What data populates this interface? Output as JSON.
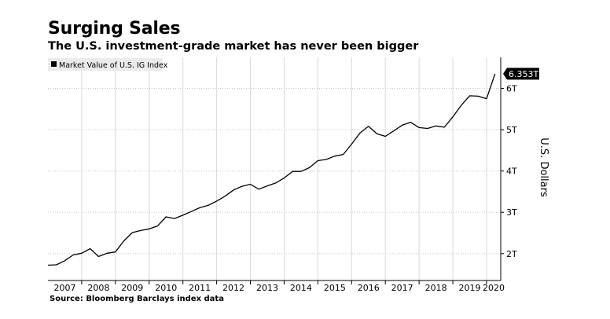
{
  "header": {
    "title": "Surging Sales",
    "subtitle": "The U.S. investment-grade market has never been bigger"
  },
  "footer": {
    "source": "Source: Bloomberg Barclays index data"
  },
  "colors": {
    "line": "#000000",
    "grid": "#d9d9d9",
    "background": "#ffffff"
  },
  "chart_data": {
    "type": "line",
    "title": "Surging Sales",
    "subtitle": "The U.S. investment-grade market has never been bigger",
    "ylabel": "U.S. Dollars",
    "xlabel": "",
    "legend": {
      "position": "top-left",
      "entries": [
        "Market Value of U.S. IG Index"
      ]
    },
    "last_value_label": "6.353T",
    "x_tick_labels": [
      "2007",
      "2008",
      "2009",
      "2010",
      "2011",
      "2012",
      "2013",
      "2014",
      "2015",
      "2016",
      "2017",
      "2018",
      "2019",
      "2020"
    ],
    "y_tick_labels": [
      "2T",
      "3T",
      "4T",
      "5T",
      "6T"
    ],
    "y_ticks": [
      2,
      3,
      4,
      5,
      6
    ],
    "xlim": [
      2007.0,
      2020.42
    ],
    "ylim": [
      1.35,
      6.75
    ],
    "grid": true,
    "series": [
      {
        "name": "Market Value of U.S. IG Index",
        "x": [
          2007.0,
          2007.25,
          2007.5,
          2007.75,
          2008.0,
          2008.25,
          2008.5,
          2008.75,
          2009.0,
          2009.25,
          2009.5,
          2009.75,
          2010.0,
          2010.25,
          2010.5,
          2010.75,
          2011.0,
          2011.25,
          2011.5,
          2011.75,
          2012.0,
          2012.25,
          2012.5,
          2012.75,
          2013.0,
          2013.25,
          2013.5,
          2013.75,
          2014.0,
          2014.25,
          2014.5,
          2014.75,
          2015.0,
          2015.25,
          2015.5,
          2015.75,
          2016.0,
          2016.25,
          2016.5,
          2016.75,
          2017.0,
          2017.25,
          2017.5,
          2017.75,
          2018.0,
          2018.25,
          2018.5,
          2018.75,
          2019.0,
          2019.25,
          2019.5,
          2019.75,
          2020.0,
          2020.25
        ],
        "values": [
          1.72,
          1.73,
          1.83,
          1.97,
          2.01,
          2.12,
          1.93,
          2.01,
          2.04,
          2.31,
          2.51,
          2.56,
          2.6,
          2.67,
          2.89,
          2.85,
          2.93,
          3.02,
          3.11,
          3.17,
          3.27,
          3.39,
          3.54,
          3.63,
          3.68,
          3.56,
          3.64,
          3.71,
          3.83,
          3.99,
          3.99,
          4.08,
          4.25,
          4.28,
          4.36,
          4.4,
          4.65,
          4.92,
          5.08,
          4.9,
          4.84,
          4.97,
          5.11,
          5.18,
          5.05,
          5.03,
          5.09,
          5.06,
          5.31,
          5.59,
          5.82,
          5.81,
          5.75,
          6.353
        ]
      }
    ]
  }
}
